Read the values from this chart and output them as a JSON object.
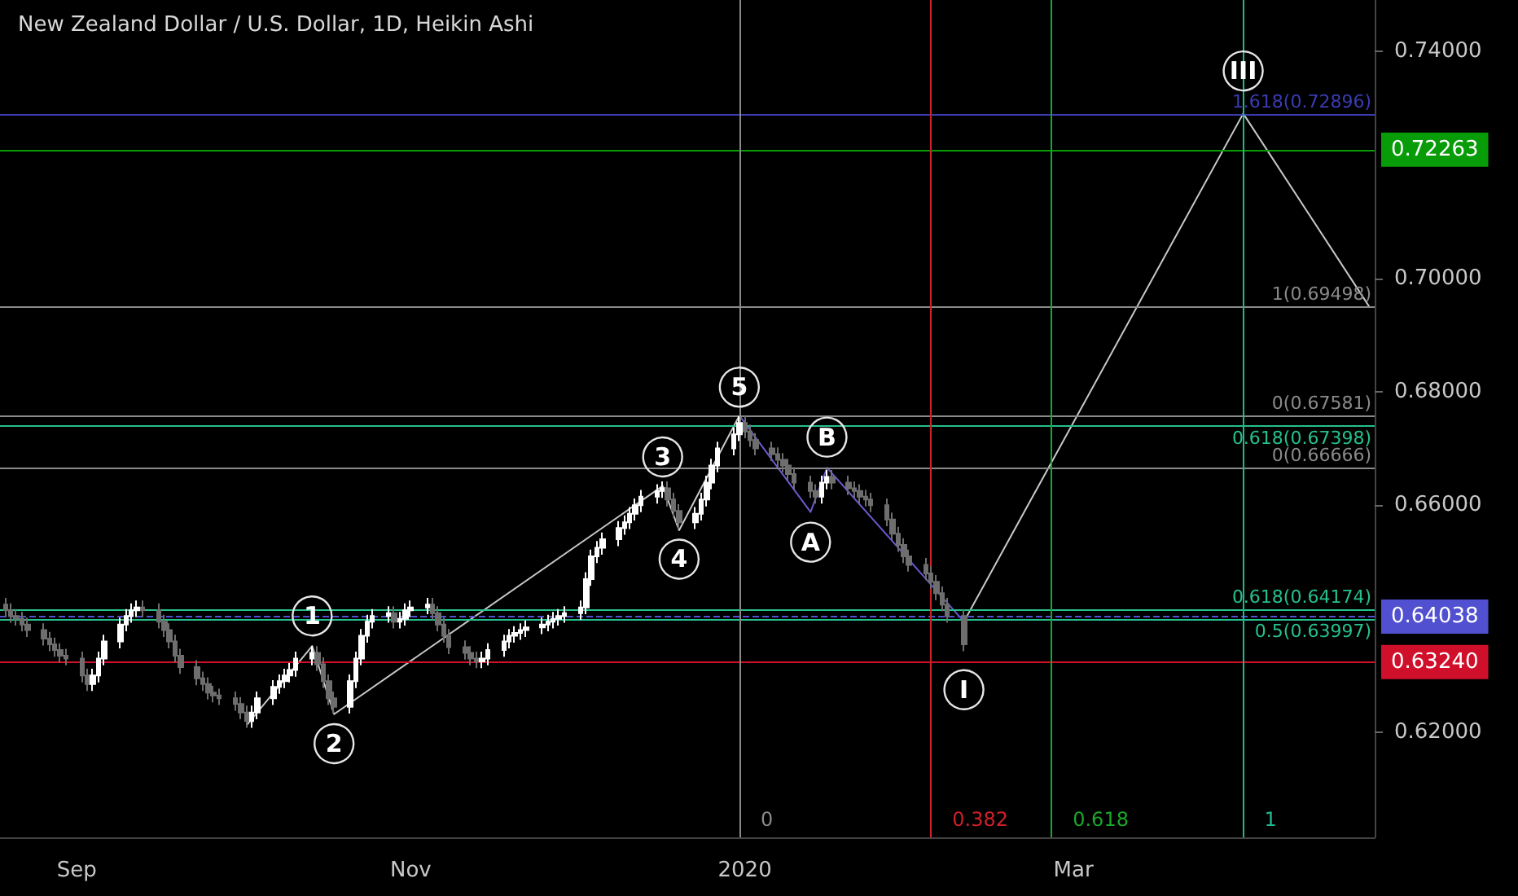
{
  "chart_data": {
    "type": "candlestick",
    "title": "New Zealand Dollar / U.S. Dollar, 1D, Heikin Ashi",
    "x": [
      "2019-08-19",
      "2019-08-20",
      "2019-08-21",
      "2019-08-22",
      "2019-08-23",
      "2019-08-26",
      "2019-08-27",
      "2019-08-28",
      "2019-08-29",
      "2019-08-30",
      "2019-09-02",
      "2019-09-03",
      "2019-09-04",
      "2019-09-05",
      "2019-09-06",
      "2019-09-09",
      "2019-09-10",
      "2019-09-11",
      "2019-09-12",
      "2019-09-13",
      "2019-09-16",
      "2019-09-17",
      "2019-09-18",
      "2019-09-19",
      "2019-09-20",
      "2019-09-23",
      "2019-09-24",
      "2019-09-25",
      "2019-09-26",
      "2019-09-27",
      "2019-09-30",
      "2019-10-01",
      "2019-10-02",
      "2019-10-03",
      "2019-10-04",
      "2019-10-07",
      "2019-10-08",
      "2019-10-09",
      "2019-10-10",
      "2019-10-11",
      "2019-10-14",
      "2019-10-15",
      "2019-10-16",
      "2019-10-17",
      "2019-10-18",
      "2019-10-21",
      "2019-10-22",
      "2019-10-23",
      "2019-10-24",
      "2019-10-25",
      "2019-10-28",
      "2019-10-29",
      "2019-10-30",
      "2019-10-31",
      "2019-11-01",
      "2019-11-04",
      "2019-11-05",
      "2019-11-06",
      "2019-11-07",
      "2019-11-08",
      "2019-11-11",
      "2019-11-12",
      "2019-11-13",
      "2019-11-14",
      "2019-11-15",
      "2019-11-18",
      "2019-11-19",
      "2019-11-20",
      "2019-11-21",
      "2019-11-22",
      "2019-11-25",
      "2019-11-26",
      "2019-11-27",
      "2019-11-28",
      "2019-11-29",
      "2019-12-02",
      "2019-12-03",
      "2019-12-04",
      "2019-12-05",
      "2019-12-06",
      "2019-12-09",
      "2019-12-10",
      "2019-12-11",
      "2019-12-12",
      "2019-12-13",
      "2019-12-16",
      "2019-12-17",
      "2019-12-18",
      "2019-12-19",
      "2019-12-20",
      "2019-12-23",
      "2019-12-24",
      "2019-12-25",
      "2019-12-26",
      "2019-12-27",
      "2019-12-30",
      "2019-12-31",
      "2020-01-01",
      "2020-01-02",
      "2020-01-03",
      "2020-01-06",
      "2020-01-07",
      "2020-01-08",
      "2020-01-09",
      "2020-01-10",
      "2020-01-13",
      "2020-01-14",
      "2020-01-15",
      "2020-01-16",
      "2020-01-17",
      "2020-01-20",
      "2020-01-21",
      "2020-01-22",
      "2020-01-23",
      "2020-01-24",
      "2020-01-27",
      "2020-01-28",
      "2020-01-29",
      "2020-01-30",
      "2020-01-31",
      "2020-02-03",
      "2020-02-04",
      "2020-02-05",
      "2020-02-06",
      "2020-02-07",
      "2020-02-10"
    ],
    "ohlc": [
      [
        0.6425,
        0.6437,
        0.6403,
        0.6415
      ],
      [
        0.6415,
        0.6427,
        0.6393,
        0.6405
      ],
      [
        0.6405,
        0.6417,
        0.6388,
        0.64
      ],
      [
        0.64,
        0.6412,
        0.6378,
        0.639
      ],
      [
        0.639,
        0.6402,
        0.6368,
        0.638
      ],
      [
        0.638,
        0.6392,
        0.6353,
        0.6365
      ],
      [
        0.6365,
        0.6377,
        0.6343,
        0.6355
      ],
      [
        0.6355,
        0.6367,
        0.6333,
        0.6345
      ],
      [
        0.6345,
        0.6357,
        0.6323,
        0.6335
      ],
      [
        0.6335,
        0.6347,
        0.6318,
        0.633
      ],
      [
        0.633,
        0.6342,
        0.6288,
        0.63
      ],
      [
        0.63,
        0.6312,
        0.6273,
        0.6285
      ],
      [
        0.6285,
        0.6312,
        0.6273,
        0.63
      ],
      [
        0.63,
        0.6342,
        0.6288,
        0.633
      ],
      [
        0.633,
        0.6372,
        0.6318,
        0.636
      ],
      [
        0.636,
        0.6402,
        0.6348,
        0.639
      ],
      [
        0.639,
        0.6417,
        0.6378,
        0.6405
      ],
      [
        0.6405,
        0.6427,
        0.6393,
        0.6415
      ],
      [
        0.6415,
        0.6432,
        0.6403,
        0.642
      ],
      [
        0.642,
        0.6432,
        0.6403,
        0.6415
      ],
      [
        0.6415,
        0.6427,
        0.6383,
        0.6395
      ],
      [
        0.6395,
        0.6407,
        0.6368,
        0.638
      ],
      [
        0.638,
        0.6392,
        0.6348,
        0.636
      ],
      [
        0.636,
        0.6372,
        0.6323,
        0.6335
      ],
      [
        0.6335,
        0.6347,
        0.6303,
        0.6315
      ],
      [
        0.6315,
        0.6327,
        0.6283,
        0.6295
      ],
      [
        0.6295,
        0.6307,
        0.6273,
        0.6285
      ],
      [
        0.6285,
        0.6297,
        0.6258,
        0.627
      ],
      [
        0.627,
        0.6282,
        0.6253,
        0.6265
      ],
      [
        0.6265,
        0.6277,
        0.6248,
        0.626
      ],
      [
        0.626,
        0.6272,
        0.6238,
        0.625
      ],
      [
        0.625,
        0.6262,
        0.6223,
        0.6235
      ],
      [
        0.6235,
        0.6247,
        0.6208,
        0.622
      ],
      [
        0.622,
        0.6247,
        0.6208,
        0.6235
      ],
      [
        0.6235,
        0.6272,
        0.6223,
        0.626
      ],
      [
        0.626,
        0.6292,
        0.6248,
        0.628
      ],
      [
        0.628,
        0.6302,
        0.6268,
        0.629
      ],
      [
        0.629,
        0.6312,
        0.6278,
        0.63
      ],
      [
        0.63,
        0.6322,
        0.6288,
        0.631
      ],
      [
        0.631,
        0.6342,
        0.6298,
        0.633
      ],
      [
        0.633,
        0.6352,
        0.6318,
        0.634
      ],
      [
        0.634,
        0.6352,
        0.6308,
        0.632
      ],
      [
        0.632,
        0.6332,
        0.6278,
        0.629
      ],
      [
        0.629,
        0.6302,
        0.6248,
        0.626
      ],
      [
        0.626,
        0.6272,
        0.6233,
        0.6245
      ],
      [
        0.6245,
        0.6302,
        0.6233,
        0.629
      ],
      [
        0.629,
        0.6342,
        0.6278,
        0.633
      ],
      [
        0.633,
        0.6382,
        0.6318,
        0.637
      ],
      [
        0.637,
        0.6407,
        0.6358,
        0.6395
      ],
      [
        0.6395,
        0.6417,
        0.6383,
        0.6405
      ],
      [
        0.6405,
        0.6422,
        0.6393,
        0.641
      ],
      [
        0.641,
        0.6422,
        0.6383,
        0.6395
      ],
      [
        0.6395,
        0.6412,
        0.6383,
        0.64
      ],
      [
        0.64,
        0.6427,
        0.6388,
        0.6415
      ],
      [
        0.6415,
        0.6432,
        0.6403,
        0.642
      ],
      [
        0.642,
        0.6437,
        0.6408,
        0.6425
      ],
      [
        0.6425,
        0.6437,
        0.6398,
        0.641
      ],
      [
        0.641,
        0.6422,
        0.6378,
        0.639
      ],
      [
        0.639,
        0.6402,
        0.6358,
        0.637
      ],
      [
        0.637,
        0.6382,
        0.6338,
        0.635
      ],
      [
        0.635,
        0.6362,
        0.6328,
        0.634
      ],
      [
        0.634,
        0.6352,
        0.6318,
        0.633
      ],
      [
        0.633,
        0.6342,
        0.6313,
        0.6325
      ],
      [
        0.6325,
        0.6342,
        0.6313,
        0.633
      ],
      [
        0.633,
        0.6357,
        0.6318,
        0.6345
      ],
      [
        0.6345,
        0.6372,
        0.6333,
        0.636
      ],
      [
        0.636,
        0.6382,
        0.6348,
        0.637
      ],
      [
        0.637,
        0.6387,
        0.6358,
        0.6375
      ],
      [
        0.6375,
        0.6392,
        0.6363,
        0.638
      ],
      [
        0.638,
        0.6397,
        0.6368,
        0.6385
      ],
      [
        0.6385,
        0.6402,
        0.6373,
        0.639
      ],
      [
        0.639,
        0.6407,
        0.6378,
        0.6395
      ],
      [
        0.6395,
        0.6412,
        0.6383,
        0.64
      ],
      [
        0.64,
        0.6417,
        0.6388,
        0.6405
      ],
      [
        0.6405,
        0.6422,
        0.6393,
        0.641
      ],
      [
        0.641,
        0.6432,
        0.6398,
        0.642
      ],
      [
        0.642,
        0.6482,
        0.6408,
        0.647
      ],
      [
        0.647,
        0.6522,
        0.6458,
        0.651
      ],
      [
        0.651,
        0.6537,
        0.6498,
        0.6525
      ],
      [
        0.6525,
        0.6552,
        0.6513,
        0.654
      ],
      [
        0.654,
        0.6572,
        0.6528,
        0.656
      ],
      [
        0.656,
        0.6582,
        0.6548,
        0.657
      ],
      [
        0.657,
        0.6597,
        0.6558,
        0.6585
      ],
      [
        0.6585,
        0.6612,
        0.6573,
        0.66
      ],
      [
        0.66,
        0.6627,
        0.6588,
        0.6615
      ],
      [
        0.6615,
        0.6637,
        0.6603,
        0.6625
      ],
      [
        0.6625,
        0.6642,
        0.6613,
        0.663
      ],
      [
        0.663,
        0.6642,
        0.6598,
        0.661
      ],
      [
        0.661,
        0.6622,
        0.6578,
        0.659
      ],
      [
        0.659,
        0.6602,
        0.6558,
        0.657
      ],
      [
        0.657,
        0.6597,
        0.6558,
        0.6585
      ],
      [
        0.6585,
        0.6622,
        0.6573,
        0.661
      ],
      [
        0.661,
        0.6652,
        0.6598,
        0.664
      ],
      [
        0.664,
        0.6682,
        0.6628,
        0.667
      ],
      [
        0.667,
        0.6712,
        0.6658,
        0.67
      ],
      [
        0.67,
        0.6737,
        0.6688,
        0.6725
      ],
      [
        0.6725,
        0.6757,
        0.6713,
        0.6745
      ],
      [
        0.6745,
        0.6757,
        0.6718,
        0.673
      ],
      [
        0.673,
        0.6742,
        0.6703,
        0.6715
      ],
      [
        0.6715,
        0.6727,
        0.6688,
        0.67
      ],
      [
        0.67,
        0.6712,
        0.6678,
        0.669
      ],
      [
        0.669,
        0.6702,
        0.6668,
        0.668
      ],
      [
        0.668,
        0.6692,
        0.6658,
        0.667
      ],
      [
        0.667,
        0.6682,
        0.6643,
        0.6655
      ],
      [
        0.6655,
        0.6667,
        0.6628,
        0.664
      ],
      [
        0.664,
        0.6652,
        0.6613,
        0.6625
      ],
      [
        0.6625,
        0.6637,
        0.6603,
        0.6615
      ],
      [
        0.6615,
        0.6652,
        0.6603,
        0.664
      ],
      [
        0.664,
        0.6662,
        0.6628,
        0.665
      ],
      [
        0.665,
        0.6662,
        0.6628,
        0.664
      ],
      [
        0.664,
        0.6652,
        0.6618,
        0.663
      ],
      [
        0.663,
        0.6642,
        0.6613,
        0.6625
      ],
      [
        0.6625,
        0.6637,
        0.6603,
        0.6615
      ],
      [
        0.6615,
        0.6627,
        0.6598,
        0.661
      ],
      [
        0.661,
        0.6622,
        0.6588,
        0.66
      ],
      [
        0.66,
        0.6612,
        0.6563,
        0.6575
      ],
      [
        0.6575,
        0.6587,
        0.6538,
        0.655
      ],
      [
        0.655,
        0.6562,
        0.6518,
        0.653
      ],
      [
        0.653,
        0.6542,
        0.6498,
        0.651
      ],
      [
        0.651,
        0.6522,
        0.6483,
        0.6495
      ],
      [
        0.6495,
        0.6507,
        0.6468,
        0.648
      ],
      [
        0.648,
        0.6492,
        0.6453,
        0.6465
      ],
      [
        0.6465,
        0.6477,
        0.6433,
        0.6445
      ],
      [
        0.6445,
        0.6457,
        0.6413,
        0.6425
      ],
      [
        0.6425,
        0.6437,
        0.6393,
        0.6405
      ],
      [
        0.6405,
        0.6417,
        0.6343,
        0.6355
      ]
    ],
    "series": [
      {
        "type": "line",
        "color": "#c8c8c8",
        "x": [
          "2019-10-02",
          "2019-10-14",
          "2019-10-18",
          "2019-12-17",
          "2019-12-20",
          "2019-12-31"
        ],
        "values": [
          0.6212,
          0.6352,
          0.6232,
          0.6634,
          0.6556,
          0.6758
        ]
      },
      {
        "type": "line",
        "color": "#6a5acd",
        "x": [
          "2019-12-31",
          "2020-01-13",
          "2020-01-16",
          "2020-02-10"
        ],
        "values": [
          0.6758,
          0.6588,
          0.6666,
          0.6395
        ]
      },
      {
        "type": "line",
        "color": "#c8c8c8",
        "x": [
          "2020-02-10",
          "2020-04-01",
          "2020-04-24"
        ],
        "values": [
          0.6395,
          0.729,
          0.695
        ]
      }
    ],
    "xlim": [
      "2019-08-18",
      "2020-04-25"
    ],
    "xticks": [
      {
        "value": "2019-09-01",
        "label": "Sep"
      },
      {
        "value": "2019-11-01",
        "label": "Nov"
      },
      {
        "value": "2020-01-01",
        "label": "2020"
      },
      {
        "value": "2020-03-01",
        "label": "Mar"
      }
    ],
    "ylim": [
      0.6015,
      0.749
    ],
    "yticks": [
      {
        "value": 0.62,
        "label": "0.62000"
      },
      {
        "value": 0.66,
        "label": "0.66000"
      },
      {
        "value": 0.68,
        "label": "0.68000"
      },
      {
        "value": 0.7,
        "label": "0.70000"
      },
      {
        "value": 0.74,
        "label": "0.74000"
      }
    ],
    "ref_lines": [
      {
        "axis": "y",
        "value": 0.72896,
        "label": "1.618(0.72896)",
        "color": "#3b3bb3"
      },
      {
        "axis": "y",
        "value": 0.69498,
        "label": "1(0.69498)",
        "color": "#8a8a8a"
      },
      {
        "axis": "y",
        "value": 0.67581,
        "label": "0(0.67581)",
        "color": "#8a8a8a"
      },
      {
        "axis": "y",
        "value": 0.67398,
        "label": "0.618(0.67398)",
        "color": "#26c08a"
      },
      {
        "axis": "y",
        "value": 0.66666,
        "label": "0(0.66666)",
        "color": "#8a8a8a"
      },
      {
        "axis": "y",
        "value": 0.64174,
        "label": "0.618(0.64174)",
        "color": "#26c08a"
      },
      {
        "axis": "y",
        "value": 0.63997,
        "label": "0.5(0.63997)",
        "color": "#26c08a"
      },
      {
        "axis": "y",
        "value": 0.72263,
        "label": "0.72263",
        "color": "#089c08"
      },
      {
        "axis": "y",
        "value": 0.64038,
        "label": "0.64038",
        "color": "#5050d0",
        "line_style": "dashed"
      },
      {
        "axis": "y",
        "value": 0.6324,
        "label": "0.63240",
        "color": "#d0102a"
      },
      {
        "axis": "x",
        "value": "2019-12-31",
        "label": "0",
        "color": "#8a8a8a"
      },
      {
        "axis": "x",
        "value": "2020-02-04",
        "label": "0.382",
        "color": "#d0202a"
      },
      {
        "axis": "x",
        "value": "2020-02-26",
        "label": "0.618",
        "color": "#1aa82a"
      },
      {
        "axis": "x",
        "value": "2020-04-01",
        "label": "1",
        "color": "#20b890"
      }
    ],
    "annotations": [
      {
        "text": "1",
        "x": "2019-10-14",
        "y": 0.6405
      },
      {
        "text": "2",
        "x": "2019-10-18",
        "y": 0.618
      },
      {
        "text": "3",
        "x": "2019-12-17",
        "y": 0.6685
      },
      {
        "text": "4",
        "x": "2019-12-20",
        "y": 0.6505
      },
      {
        "text": "5",
        "x": "2019-12-31",
        "y": 0.6808
      },
      {
        "text": "A",
        "x": "2020-01-13",
        "y": 0.6535
      },
      {
        "text": "B",
        "x": "2020-01-16",
        "y": 0.672
      },
      {
        "text": "I",
        "x": "2020-02-10",
        "y": 0.6275
      },
      {
        "text": "III",
        "x": "2020-04-01",
        "y": 0.7365
      }
    ]
  }
}
